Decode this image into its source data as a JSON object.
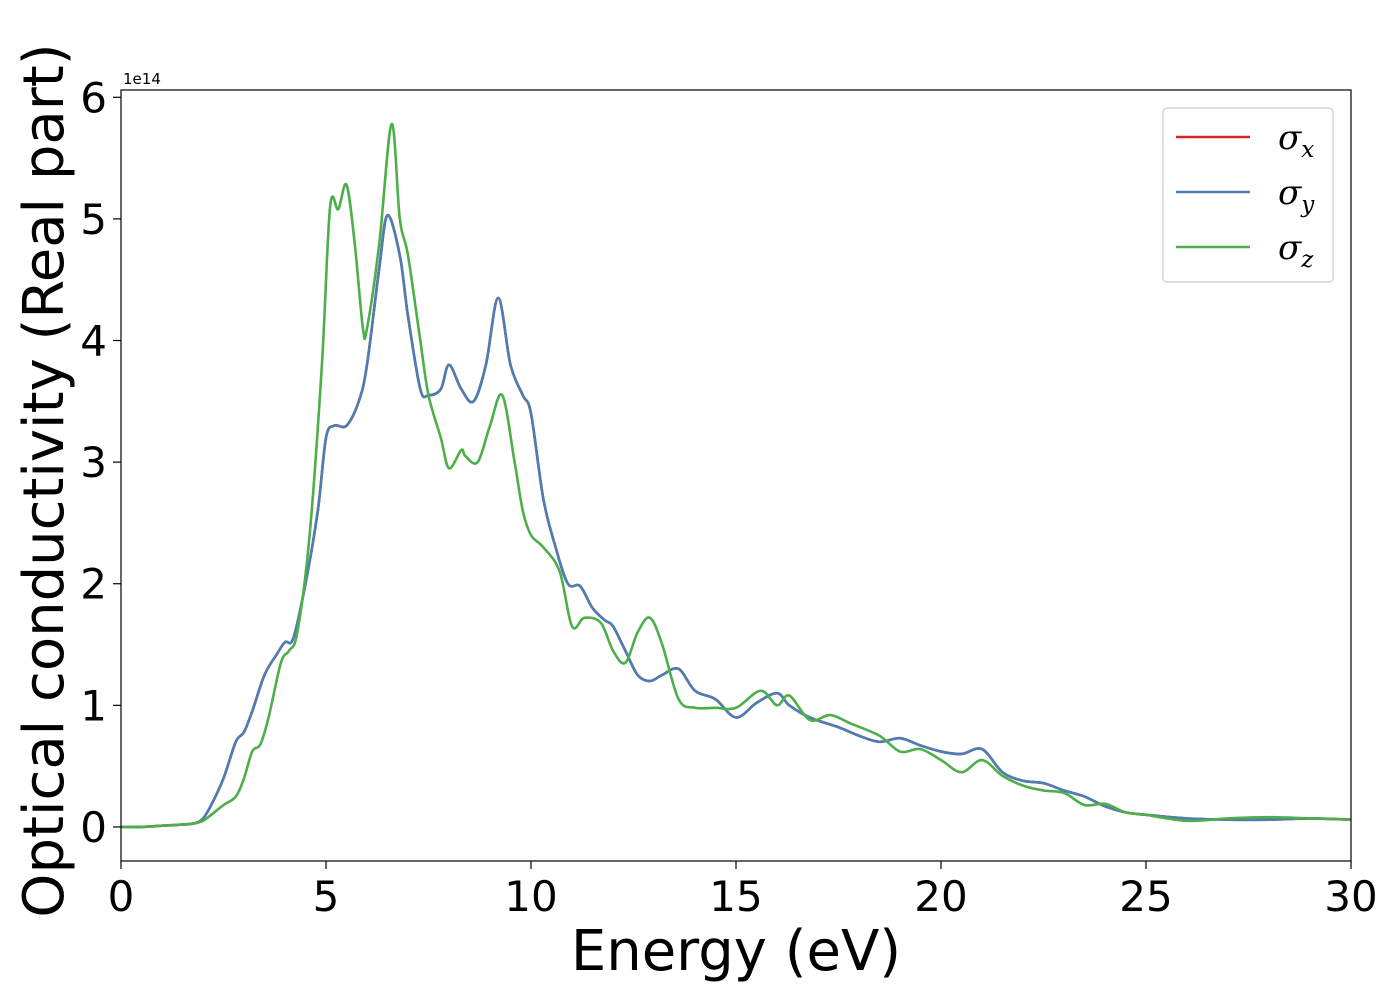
{
  "chart_data": {
    "type": "line",
    "title": "",
    "xlabel": "Energy (eV)",
    "ylabel": "Optical conductivity (Real part)",
    "y_offset_label": "1e14",
    "xlim": [
      0,
      30
    ],
    "ylim": [
      -0.28,
      6.06
    ],
    "xticks": [
      0,
      5,
      10,
      15,
      20,
      25,
      30
    ],
    "yticks": [
      0,
      1,
      2,
      3,
      4,
      5,
      6
    ],
    "grid": false,
    "legend_position": "top-right",
    "series": [
      {
        "name": "σx",
        "symbol": "σ",
        "subscript": "x",
        "color": "#d62728",
        "x": [
          0,
          0.5,
          1,
          1.5,
          1.8,
          2.0,
          2.2,
          2.5,
          2.8,
          3.0,
          3.2,
          3.5,
          3.8,
          4.0,
          4.2,
          4.5,
          4.8,
          5.0,
          5.2,
          5.5,
          5.8,
          6.0,
          6.3,
          6.5,
          6.8,
          7.0,
          7.3,
          7.5,
          7.8,
          8.0,
          8.3,
          8.6,
          8.9,
          9.2,
          9.5,
          9.8,
          10.0,
          10.3,
          10.6,
          10.9,
          11.2,
          11.5,
          11.8,
          12.0,
          12.3,
          12.6,
          12.9,
          13.2,
          13.6,
          14.0,
          14.5,
          15.0,
          15.5,
          16.0,
          16.3,
          16.8,
          17.5,
          18.0,
          18.5,
          19.0,
          19.5,
          20.0,
          20.5,
          21.0,
          21.5,
          22.0,
          22.5,
          23.0,
          23.5,
          24.0,
          24.5,
          25.0,
          26.0,
          27.0,
          28.0,
          29.0,
          30.0
        ],
        "y": [
          0,
          0.0,
          0.01,
          0.02,
          0.03,
          0.07,
          0.18,
          0.4,
          0.7,
          0.78,
          0.95,
          1.25,
          1.42,
          1.52,
          1.55,
          2.0,
          2.6,
          3.2,
          3.3,
          3.3,
          3.5,
          3.8,
          4.6,
          5.03,
          4.7,
          4.2,
          3.6,
          3.55,
          3.6,
          3.8,
          3.6,
          3.5,
          3.8,
          4.35,
          3.8,
          3.55,
          3.4,
          2.7,
          2.3,
          2.0,
          1.98,
          1.8,
          1.7,
          1.65,
          1.45,
          1.25,
          1.2,
          1.25,
          1.3,
          1.12,
          1.05,
          0.9,
          1.02,
          1.1,
          1.0,
          0.9,
          0.82,
          0.75,
          0.7,
          0.73,
          0.67,
          0.62,
          0.6,
          0.64,
          0.45,
          0.38,
          0.36,
          0.3,
          0.25,
          0.17,
          0.12,
          0.1,
          0.07,
          0.06,
          0.06,
          0.07,
          0.06
        ]
      },
      {
        "name": "σy",
        "symbol": "σ",
        "subscript": "y",
        "color": "#4a7eb5",
        "x": [
          0,
          0.5,
          1,
          1.5,
          1.8,
          2.0,
          2.2,
          2.5,
          2.8,
          3.0,
          3.2,
          3.5,
          3.8,
          4.0,
          4.2,
          4.5,
          4.8,
          5.0,
          5.2,
          5.5,
          5.8,
          6.0,
          6.3,
          6.5,
          6.8,
          7.0,
          7.3,
          7.5,
          7.8,
          8.0,
          8.3,
          8.6,
          8.9,
          9.2,
          9.5,
          9.8,
          10.0,
          10.3,
          10.6,
          10.9,
          11.2,
          11.5,
          11.8,
          12.0,
          12.3,
          12.6,
          12.9,
          13.2,
          13.6,
          14.0,
          14.5,
          15.0,
          15.5,
          16.0,
          16.3,
          16.8,
          17.5,
          18.0,
          18.5,
          19.0,
          19.5,
          20.0,
          20.5,
          21.0,
          21.5,
          22.0,
          22.5,
          23.0,
          23.5,
          24.0,
          24.5,
          25.0,
          26.0,
          27.0,
          28.0,
          29.0,
          30.0
        ],
        "y": [
          0,
          0.0,
          0.01,
          0.02,
          0.03,
          0.07,
          0.18,
          0.4,
          0.7,
          0.78,
          0.95,
          1.25,
          1.42,
          1.52,
          1.55,
          2.0,
          2.6,
          3.2,
          3.3,
          3.3,
          3.5,
          3.8,
          4.6,
          5.03,
          4.7,
          4.2,
          3.6,
          3.55,
          3.6,
          3.8,
          3.6,
          3.5,
          3.8,
          4.35,
          3.8,
          3.55,
          3.4,
          2.7,
          2.3,
          2.0,
          1.98,
          1.8,
          1.7,
          1.65,
          1.45,
          1.25,
          1.2,
          1.25,
          1.3,
          1.12,
          1.05,
          0.9,
          1.02,
          1.1,
          1.0,
          0.9,
          0.82,
          0.75,
          0.7,
          0.73,
          0.67,
          0.62,
          0.6,
          0.64,
          0.45,
          0.38,
          0.36,
          0.3,
          0.25,
          0.17,
          0.12,
          0.1,
          0.07,
          0.06,
          0.06,
          0.07,
          0.06
        ]
      },
      {
        "name": "σz",
        "symbol": "σ",
        "subscript": "z",
        "color": "#4daf4a",
        "x": [
          0,
          0.5,
          1,
          1.5,
          1.8,
          2.0,
          2.2,
          2.5,
          2.8,
          3.0,
          3.2,
          3.4,
          3.6,
          3.9,
          4.1,
          4.3,
          4.6,
          4.9,
          5.1,
          5.3,
          5.5,
          5.7,
          5.9,
          6.0,
          6.3,
          6.6,
          6.8,
          7.0,
          7.3,
          7.5,
          7.8,
          8.0,
          8.3,
          8.4,
          8.7,
          9.0,
          9.3,
          9.6,
          9.8,
          10.0,
          10.3,
          10.7,
          11.0,
          11.3,
          11.7,
          12.0,
          12.3,
          12.6,
          12.9,
          13.2,
          13.6,
          14.0,
          14.5,
          15.0,
          15.6,
          16.0,
          16.3,
          16.8,
          17.3,
          17.8,
          18.5,
          19.0,
          19.5,
          20.0,
          20.5,
          21.0,
          21.5,
          22.0,
          22.5,
          23.0,
          23.5,
          24.0,
          24.5,
          25.0,
          26.0,
          27.0,
          28.0,
          29.0,
          30.0
        ],
        "y": [
          0,
          0.0,
          0.01,
          0.02,
          0.03,
          0.05,
          0.1,
          0.18,
          0.25,
          0.4,
          0.62,
          0.68,
          0.9,
          1.35,
          1.45,
          1.6,
          2.4,
          3.8,
          5.1,
          5.08,
          5.28,
          4.8,
          4.1,
          4.1,
          4.8,
          5.78,
          5.0,
          4.7,
          4.0,
          3.55,
          3.2,
          2.95,
          3.1,
          3.05,
          3.0,
          3.3,
          3.55,
          3.0,
          2.6,
          2.4,
          2.3,
          2.1,
          1.65,
          1.72,
          1.68,
          1.45,
          1.35,
          1.6,
          1.72,
          1.5,
          1.05,
          0.98,
          0.98,
          0.98,
          1.12,
          1.0,
          1.08,
          0.88,
          0.92,
          0.85,
          0.75,
          0.62,
          0.64,
          0.55,
          0.45,
          0.55,
          0.42,
          0.34,
          0.3,
          0.28,
          0.18,
          0.19,
          0.12,
          0.1,
          0.05,
          0.07,
          0.08,
          0.07,
          0.06
        ]
      }
    ]
  }
}
